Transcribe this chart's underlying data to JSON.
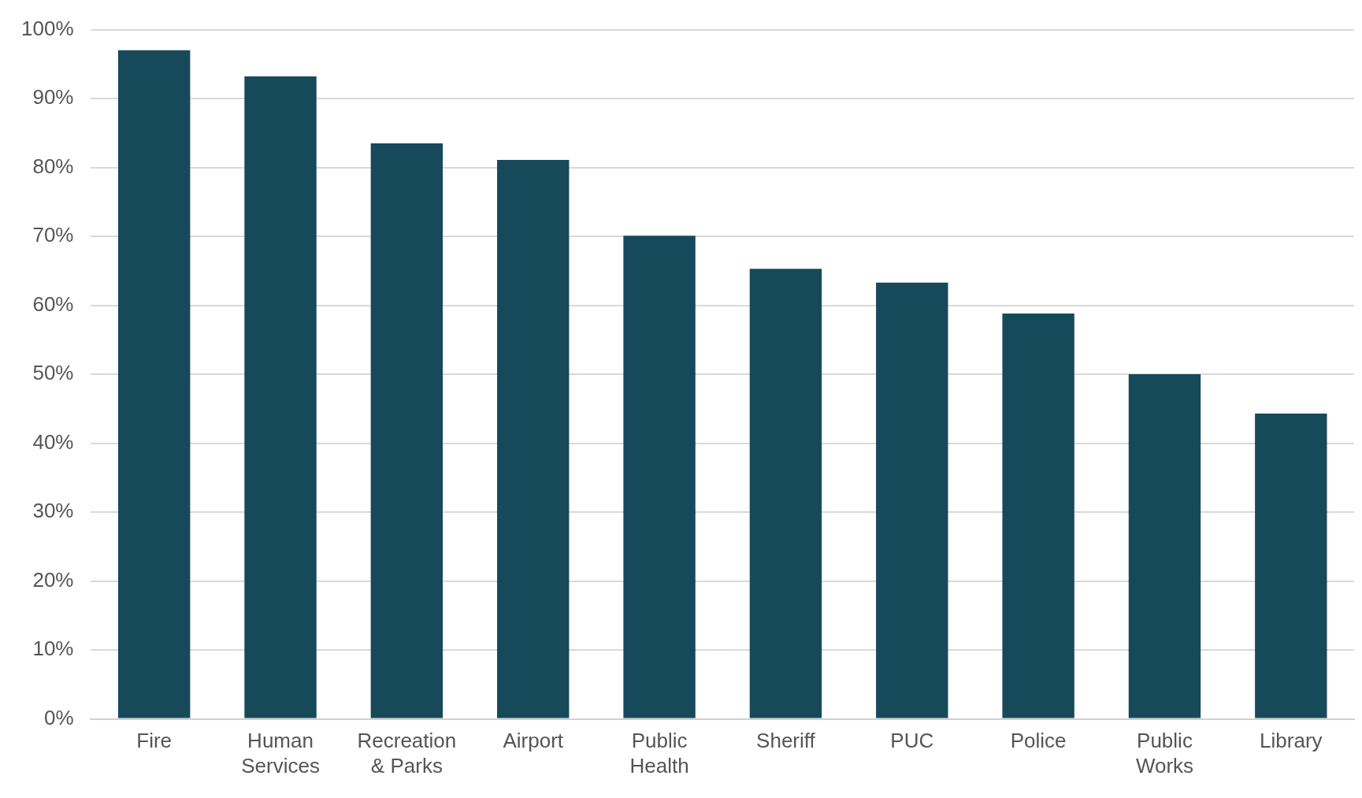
{
  "chart_data": {
    "type": "bar",
    "categories": [
      "Fire",
      "Human Services",
      "Recreation & Parks",
      "Airport",
      "Public Health",
      "Sheriff",
      "PUC",
      "Police",
      "Public Works",
      "Library"
    ],
    "values": [
      97,
      93.2,
      83.5,
      81.1,
      70.1,
      65.3,
      63.3,
      58.8,
      50,
      44.3
    ],
    "color": "#164a5b",
    "ylim": [
      0,
      100
    ],
    "yticks": [
      {
        "value": 0,
        "label": "0%"
      },
      {
        "value": 10,
        "label": "10%"
      },
      {
        "value": 20,
        "label": "20%"
      },
      {
        "value": 30,
        "label": "30%"
      },
      {
        "value": 40,
        "label": "40%"
      },
      {
        "value": 50,
        "label": "50%"
      },
      {
        "value": 60,
        "label": "60%"
      },
      {
        "value": 70,
        "label": "70%"
      },
      {
        "value": 80,
        "label": "80%"
      },
      {
        "value": 90,
        "label": "90%"
      },
      {
        "value": 100,
        "label": "100%"
      }
    ],
    "grid": "y",
    "legend": false
  }
}
